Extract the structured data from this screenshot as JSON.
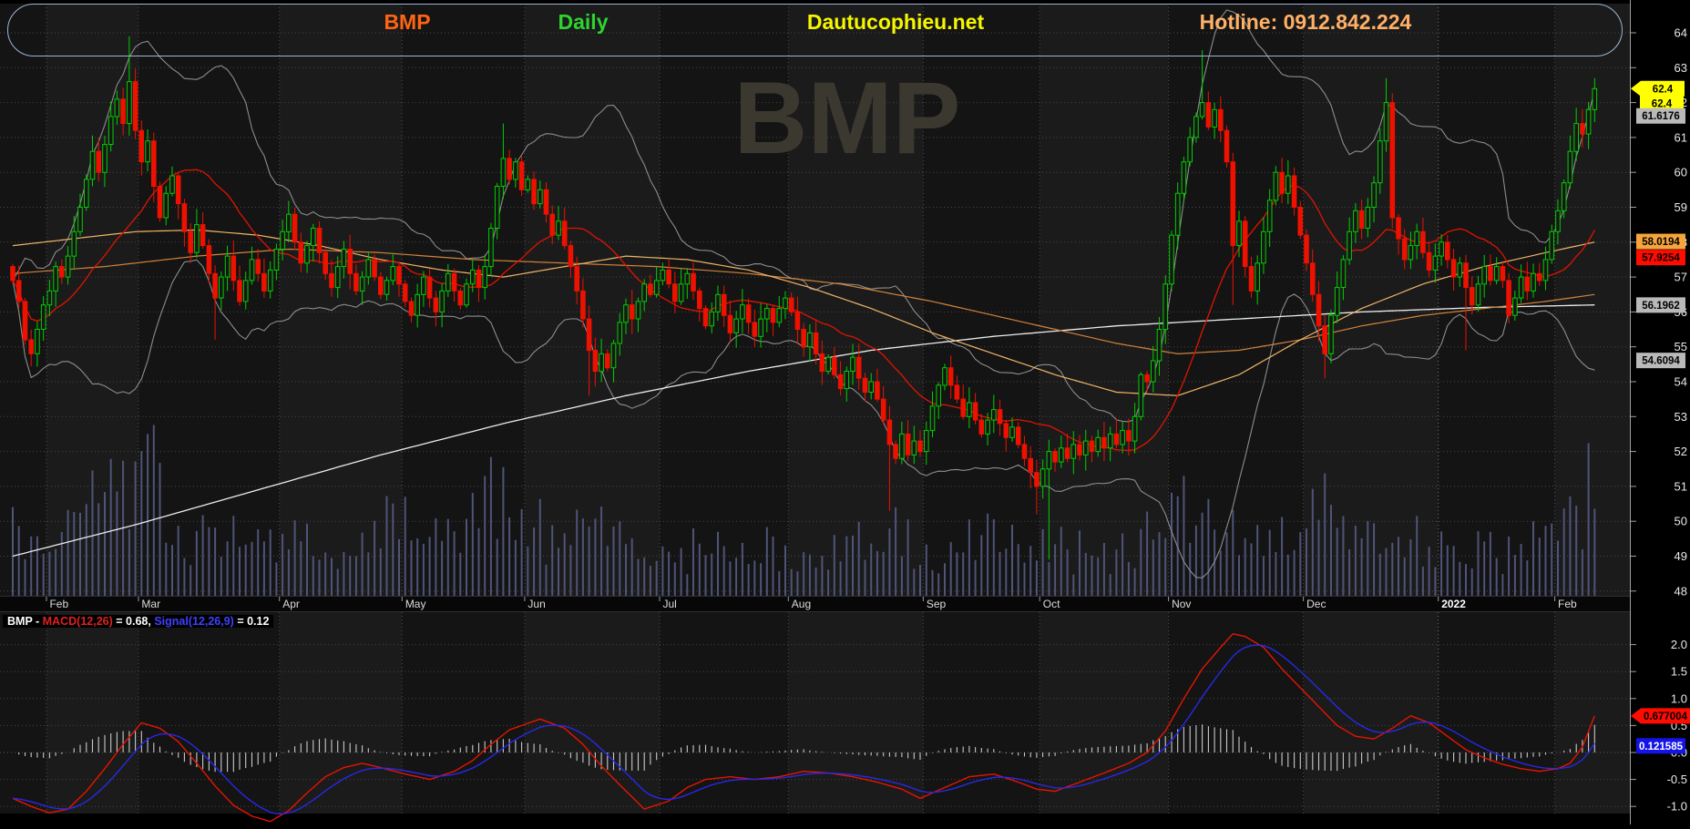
{
  "header": {
    "symbol": "BMP",
    "timeframe": "Daily",
    "site": "Dautucophieu.net",
    "hotline": "Hotline: 0912.842.224"
  },
  "watermark": "BMP",
  "macd_legend": {
    "prefix": "BMP - ",
    "macd_term": "MACD(12,26)",
    "macd_value": " = 0.68, ",
    "signal_term": "Signal(12,26,9)",
    "signal_value": " = 0.12"
  },
  "price_axis": {
    "ticks": [
      64,
      63,
      62,
      61,
      60,
      59,
      58,
      57,
      56,
      55,
      54,
      53,
      52,
      51,
      50,
      49,
      48
    ],
    "badges": [
      {
        "text": "62.4",
        "value": 62.4,
        "bg": "#ffff00",
        "fg": "#000000",
        "arrow": true
      },
      {
        "text": "62.4",
        "value": 62.4,
        "dy": 16,
        "bg": "#ffff00",
        "fg": "#000000"
      },
      {
        "text": "61.6176",
        "value": 61.6176,
        "bg": "#b9b9b9",
        "fg": "#000000"
      },
      {
        "text": "58.0194",
        "value": 58.0194,
        "bg": "#f5a53c",
        "fg": "#000000"
      },
      {
        "text": "57.9254",
        "value": 57.9254,
        "dy": 14,
        "bg": "#ff0b00",
        "fg": "#000000"
      },
      {
        "text": "56.1962",
        "value": 56.1962,
        "bg": "#b9b9b9",
        "fg": "#000000"
      },
      {
        "text": "54.6094",
        "value": 54.6094,
        "bg": "#b9b9b9",
        "fg": "#000000"
      }
    ]
  },
  "macd_axis": {
    "ticks": [
      2.0,
      1.5,
      1.0,
      0.5,
      0.0,
      -0.5,
      -1.0
    ],
    "badges": [
      {
        "text": "0.677004",
        "value": 0.677004,
        "bg": "#ff0b00",
        "fg": "#000000",
        "arrow": true
      },
      {
        "text": "0.121585",
        "value": 0.121585,
        "bg": "#1414e8",
        "fg": "#ffffff"
      }
    ]
  },
  "time_axis": {
    "labels": [
      {
        "text": "Feb",
        "i": 6
      },
      {
        "text": "Mar",
        "i": 21
      },
      {
        "text": "Apr",
        "i": 44
      },
      {
        "text": "May",
        "i": 64
      },
      {
        "text": "Jun",
        "i": 84
      },
      {
        "text": "Jul",
        "i": 106
      },
      {
        "text": "Aug",
        "i": 127
      },
      {
        "text": "Sep",
        "i": 149
      },
      {
        "text": "Oct",
        "i": 168
      },
      {
        "text": "Nov",
        "i": 189
      },
      {
        "text": "Dec",
        "i": 211
      },
      {
        "text": "2022",
        "i": 233,
        "bold": true
      },
      {
        "text": "Feb",
        "i": 252
      }
    ]
  },
  "colors": {
    "candle_up": "#00cf00",
    "candle_down": "#ee1100",
    "volume": "#4f5478",
    "bollinger": "#8d8d8d",
    "ma200": "#ececec",
    "ma100": "#d2833c",
    "ma50": "#f0b468",
    "ma20": "#e01400",
    "macd_line": "#e61400",
    "signal_line": "#2828e6",
    "histogram": "#c9c9c9",
    "band_light": "#1b1b1b",
    "band_dark": "#141414",
    "grid": "#474747",
    "axis": "#a0a0a0",
    "label": "#e8e8e8",
    "watermark": "#3a382f"
  },
  "chart_data": {
    "type": "candlestick",
    "symbol": "BMP",
    "interval": "Daily",
    "ylim": [
      48,
      64
    ],
    "macd_ylim": [
      -1.0,
      2.0
    ],
    "closes": [
      56.9,
      56.3,
      55.2,
      54.8,
      55.5,
      56.2,
      56.6,
      57.3,
      57.0,
      57.6,
      58.3,
      59.0,
      59.8,
      60.6,
      60.0,
      60.8,
      61.6,
      62.1,
      61.4,
      62.6,
      61.2,
      60.3,
      60.9,
      59.6,
      58.7,
      59.4,
      59.9,
      59.1,
      58.3,
      57.7,
      58.5,
      57.9,
      57.1,
      56.4,
      57.0,
      57.6,
      56.9,
      56.3,
      56.9,
      57.5,
      57.1,
      56.6,
      57.2,
      57.8,
      58.3,
      58.8,
      58.0,
      57.4,
      57.9,
      58.4,
      57.7,
      57.1,
      56.7,
      57.3,
      57.8,
      57.1,
      56.6,
      57.0,
      57.5,
      57.0,
      56.5,
      56.9,
      57.3,
      56.8,
      56.3,
      55.9,
      56.5,
      57.0,
      56.4,
      56.0,
      56.6,
      57.1,
      56.6,
      56.2,
      56.8,
      57.2,
      56.7,
      57.3,
      58.4,
      59.6,
      60.4,
      59.8,
      60.3,
      59.5,
      59.8,
      59.1,
      59.5,
      58.8,
      58.2,
      58.6,
      57.9,
      57.3,
      56.6,
      55.8,
      54.9,
      54.3,
      54.8,
      54.4,
      55.1,
      55.7,
      56.2,
      55.8,
      56.3,
      56.8,
      56.5,
      56.9,
      57.2,
      56.8,
      56.3,
      56.8,
      57.1,
      56.6,
      56.1,
      55.6,
      56.0,
      56.5,
      55.9,
      55.4,
      55.8,
      56.2,
      55.7,
      55.3,
      55.8,
      56.1,
      55.7,
      56.1,
      56.4,
      56.0,
      55.5,
      55.0,
      55.4,
      54.8,
      54.3,
      54.7,
      54.2,
      53.8,
      54.3,
      54.7,
      54.1,
      53.7,
      54.0,
      53.5,
      52.9,
      52.2,
      51.8,
      52.5,
      51.9,
      52.3,
      52.0,
      52.6,
      53.3,
      53.9,
      54.4,
      53.9,
      53.5,
      53.0,
      53.4,
      52.9,
      52.5,
      52.9,
      53.2,
      52.8,
      52.4,
      52.7,
      52.2,
      51.8,
      51.4,
      51.0,
      51.5,
      52.0,
      51.7,
      52.1,
      51.8,
      52.2,
      51.9,
      52.3,
      52.0,
      52.4,
      52.1,
      52.5,
      52.2,
      52.6,
      52.3,
      53.0,
      54.2,
      54.0,
      54.6,
      55.5,
      56.8,
      58.2,
      59.4,
      60.3,
      61.0,
      61.6,
      62.0,
      61.3,
      61.8,
      61.2,
      60.3,
      57.9,
      58.6,
      57.3,
      56.6,
      57.4,
      58.3,
      59.2,
      60.0,
      59.4,
      59.9,
      59.0,
      58.2,
      57.4,
      56.5,
      55.6,
      54.8,
      55.9,
      56.7,
      57.5,
      58.3,
      58.9,
      58.4,
      59.0,
      59.7,
      60.9,
      62.0,
      58.7,
      58.1,
      57.5,
      57.9,
      58.3,
      57.7,
      57.2,
      57.6,
      58.0,
      57.5,
      57.0,
      57.4,
      56.7,
      56.2,
      56.8,
      57.3,
      56.9,
      57.3,
      56.9,
      55.9,
      56.4,
      57.0,
      56.6,
      57.1,
      56.9,
      57.5,
      58.3,
      58.9,
      59.7,
      60.6,
      61.4,
      61.1,
      61.8,
      62.4
    ],
    "spikes": {
      "19": [
        63.9,
        null
      ],
      "33": [
        null,
        55.2
      ],
      "80": [
        61.4,
        null
      ],
      "94": [
        null,
        53.6
      ],
      "143": [
        null,
        50.3
      ],
      "167": [
        null,
        50.2
      ],
      "169": [
        null,
        48.9
      ],
      "194": [
        63.5,
        null
      ],
      "199": [
        null,
        56.2
      ],
      "214": [
        null,
        54.1
      ],
      "224": [
        62.7,
        null
      ],
      "237": [
        null,
        54.9
      ],
      "258": [
        62.7,
        null
      ]
    },
    "volume_envelope": [
      [
        0,
        0.45
      ],
      [
        5,
        0.3
      ],
      [
        10,
        0.5
      ],
      [
        15,
        0.75
      ],
      [
        20,
        0.9
      ],
      [
        22,
        1.0
      ],
      [
        25,
        0.55
      ],
      [
        30,
        0.4
      ],
      [
        35,
        0.45
      ],
      [
        40,
        0.35
      ],
      [
        45,
        0.42
      ],
      [
        50,
        0.35
      ],
      [
        55,
        0.3
      ],
      [
        60,
        0.5
      ],
      [
        62,
        0.95
      ],
      [
        64,
        0.5
      ],
      [
        68,
        0.4
      ],
      [
        72,
        0.45
      ],
      [
        76,
        0.55
      ],
      [
        79,
        0.85
      ],
      [
        81,
        0.9
      ],
      [
        83,
        0.6
      ],
      [
        86,
        0.5
      ],
      [
        90,
        0.4
      ],
      [
        94,
        0.55
      ],
      [
        98,
        0.4
      ],
      [
        103,
        0.35
      ],
      [
        108,
        0.3
      ],
      [
        112,
        0.35
      ],
      [
        116,
        0.3
      ],
      [
        120,
        0.45
      ],
      [
        124,
        0.35
      ],
      [
        128,
        0.3
      ],
      [
        132,
        0.35
      ],
      [
        136,
        0.3
      ],
      [
        140,
        0.45
      ],
      [
        143,
        0.5
      ],
      [
        147,
        0.35
      ],
      [
        151,
        0.3
      ],
      [
        155,
        0.35
      ],
      [
        160,
        0.5
      ],
      [
        164,
        0.3
      ],
      [
        168,
        0.45
      ],
      [
        172,
        0.3
      ],
      [
        176,
        0.35
      ],
      [
        180,
        0.3
      ],
      [
        184,
        0.4
      ],
      [
        188,
        0.45
      ],
      [
        191,
        0.65
      ],
      [
        194,
        0.7
      ],
      [
        197,
        0.5
      ],
      [
        200,
        0.45
      ],
      [
        203,
        0.5
      ],
      [
        206,
        0.4
      ],
      [
        210,
        0.5
      ],
      [
        213,
        0.75
      ],
      [
        216,
        0.55
      ],
      [
        220,
        0.4
      ],
      [
        224,
        0.6
      ],
      [
        227,
        0.45
      ],
      [
        231,
        0.35
      ],
      [
        235,
        0.3
      ],
      [
        239,
        0.35
      ],
      [
        243,
        0.3
      ],
      [
        247,
        0.35
      ],
      [
        250,
        0.45
      ],
      [
        253,
        0.6
      ],
      [
        255,
        0.5
      ],
      [
        257,
        0.85
      ],
      [
        258,
        0.7
      ]
    ],
    "overlays": {
      "bollinger_period": 20,
      "bollinger_mult": 2,
      "ma20_period": 20,
      "ma200": [
        [
          0,
          49.0
        ],
        [
          20,
          49.9
        ],
        [
          40,
          50.9
        ],
        [
          60,
          51.9
        ],
        [
          80,
          52.8
        ],
        [
          100,
          53.6
        ],
        [
          120,
          54.3
        ],
        [
          140,
          54.9
        ],
        [
          160,
          55.3
        ],
        [
          180,
          55.6
        ],
        [
          200,
          55.8
        ],
        [
          220,
          56.0
        ],
        [
          240,
          56.13
        ],
        [
          258,
          56.2
        ]
      ],
      "ma100": [
        [
          0,
          57.1
        ],
        [
          15,
          57.3
        ],
        [
          30,
          57.6
        ],
        [
          45,
          57.8
        ],
        [
          60,
          57.7
        ],
        [
          75,
          57.5
        ],
        [
          90,
          57.4
        ],
        [
          105,
          57.3
        ],
        [
          120,
          57.1
        ],
        [
          135,
          56.8
        ],
        [
          150,
          56.3
        ],
        [
          165,
          55.7
        ],
        [
          180,
          55.1
        ],
        [
          190,
          54.8
        ],
        [
          200,
          54.9
        ],
        [
          210,
          55.2
        ],
        [
          220,
          55.6
        ],
        [
          230,
          55.9
        ],
        [
          240,
          56.1
        ],
        [
          250,
          56.3
        ],
        [
          258,
          56.5
        ]
      ],
      "ma50": [
        [
          0,
          57.9
        ],
        [
          10,
          58.1
        ],
        [
          20,
          58.3
        ],
        [
          30,
          58.35
        ],
        [
          40,
          58.2
        ],
        [
          50,
          57.9
        ],
        [
          60,
          57.5
        ],
        [
          70,
          57.2
        ],
        [
          80,
          57.0
        ],
        [
          90,
          57.3
        ],
        [
          100,
          57.6
        ],
        [
          110,
          57.5
        ],
        [
          120,
          57.2
        ],
        [
          130,
          56.7
        ],
        [
          140,
          56.1
        ],
        [
          150,
          55.4
        ],
        [
          160,
          54.8
        ],
        [
          170,
          54.2
        ],
        [
          180,
          53.7
        ],
        [
          190,
          53.6
        ],
        [
          200,
          54.2
        ],
        [
          210,
          55.2
        ],
        [
          220,
          56.1
        ],
        [
          230,
          56.8
        ],
        [
          240,
          57.3
        ],
        [
          250,
          57.7
        ],
        [
          258,
          58.0
        ]
      ]
    },
    "macd": {
      "points": [
        [
          0,
          -0.85
        ],
        [
          3,
          -1.0
        ],
        [
          6,
          -1.12
        ],
        [
          9,
          -1.05
        ],
        [
          12,
          -0.72
        ],
        [
          15,
          -0.3
        ],
        [
          18,
          0.15
        ],
        [
          21,
          0.55
        ],
        [
          24,
          0.45
        ],
        [
          27,
          0.2
        ],
        [
          30,
          -0.2
        ],
        [
          33,
          -0.62
        ],
        [
          36,
          -0.98
        ],
        [
          39,
          -1.18
        ],
        [
          42,
          -1.28
        ],
        [
          45,
          -1.08
        ],
        [
          48,
          -0.75
        ],
        [
          51,
          -0.45
        ],
        [
          54,
          -0.28
        ],
        [
          57,
          -0.2
        ],
        [
          60,
          -0.28
        ],
        [
          64,
          -0.4
        ],
        [
          68,
          -0.5
        ],
        [
          72,
          -0.35
        ],
        [
          75,
          -0.15
        ],
        [
          78,
          0.15
        ],
        [
          81,
          0.42
        ],
        [
          86,
          0.62
        ],
        [
          90,
          0.45
        ],
        [
          93,
          0.15
        ],
        [
          96,
          -0.25
        ],
        [
          99,
          -0.6
        ],
        [
          103,
          -1.05
        ],
        [
          107,
          -0.9
        ],
        [
          110,
          -0.65
        ],
        [
          113,
          -0.5
        ],
        [
          117,
          -0.45
        ],
        [
          121,
          -0.5
        ],
        [
          125,
          -0.45
        ],
        [
          129,
          -0.35
        ],
        [
          133,
          -0.38
        ],
        [
          137,
          -0.45
        ],
        [
          141,
          -0.55
        ],
        [
          145,
          -0.68
        ],
        [
          148,
          -0.85
        ],
        [
          152,
          -0.65
        ],
        [
          156,
          -0.45
        ],
        [
          160,
          -0.4
        ],
        [
          164,
          -0.55
        ],
        [
          167,
          -0.68
        ],
        [
          170,
          -0.72
        ],
        [
          174,
          -0.55
        ],
        [
          178,
          -0.38
        ],
        [
          182,
          -0.2
        ],
        [
          185,
          0.0
        ],
        [
          188,
          0.4
        ],
        [
          191,
          1.0
        ],
        [
          194,
          1.55
        ],
        [
          197,
          1.95
        ],
        [
          199,
          2.2
        ],
        [
          201,
          2.15
        ],
        [
          204,
          1.95
        ],
        [
          207,
          1.55
        ],
        [
          210,
          1.2
        ],
        [
          213,
          0.85
        ],
        [
          216,
          0.5
        ],
        [
          219,
          0.3
        ],
        [
          222,
          0.25
        ],
        [
          225,
          0.45
        ],
        [
          228,
          0.68
        ],
        [
          231,
          0.55
        ],
        [
          234,
          0.3
        ],
        [
          237,
          0.05
        ],
        [
          240,
          -0.1
        ],
        [
          243,
          -0.22
        ],
        [
          246,
          -0.3
        ],
        [
          249,
          -0.35
        ],
        [
          252,
          -0.3
        ],
        [
          254,
          -0.2
        ],
        [
          256,
          0.1
        ],
        [
          258,
          0.68
        ]
      ],
      "signal_ema": 7
    }
  }
}
